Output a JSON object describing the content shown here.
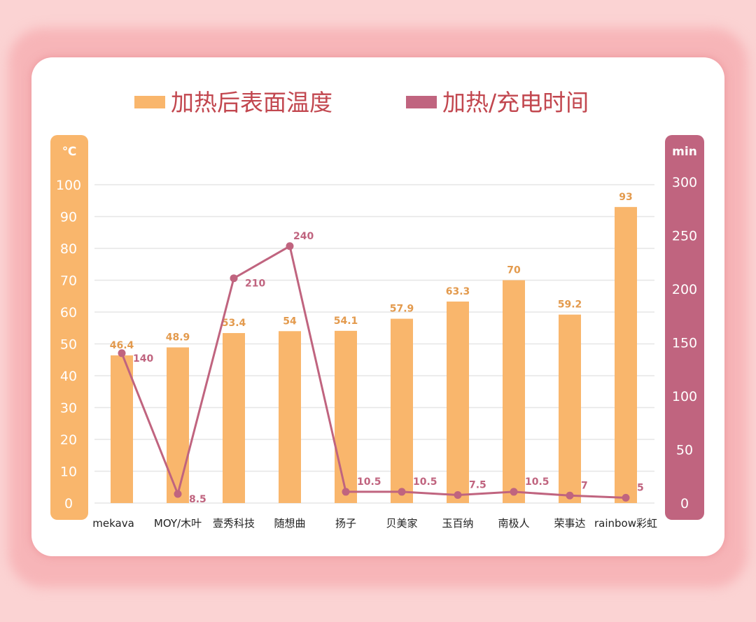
{
  "chart_data": {
    "type": "bar+line",
    "categories": [
      "mekava",
      "MOY/木叶",
      "壹秀科技",
      "随想曲",
      "扬子",
      "贝美家",
      "玉百纳",
      "南极人",
      "荣事达",
      "rainbow彩虹"
    ],
    "series": [
      {
        "name": "加热后表面温度",
        "type": "bar",
        "axis": "left",
        "color": "#f9b66c",
        "values": [
          46.4,
          48.9,
          53.4,
          54,
          54.1,
          57.9,
          63.3,
          70,
          59.2,
          93
        ]
      },
      {
        "name": "加热/充电时间",
        "type": "line",
        "axis": "right",
        "color": "#c0647f",
        "values": [
          140,
          8.5,
          210,
          240,
          10.5,
          10.5,
          7.5,
          10.5,
          7,
          5
        ]
      }
    ],
    "left_axis": {
      "unit": "℃",
      "ylim": [
        0,
        100
      ],
      "ticks": [
        0,
        10,
        20,
        30,
        40,
        50,
        60,
        70,
        80,
        90,
        100
      ],
      "color": "#f9b66c"
    },
    "right_axis": {
      "unit": "min",
      "ylim": [
        0,
        300
      ],
      "ticks": [
        0,
        50,
        100,
        150,
        200,
        250,
        300
      ],
      "color": "#c0647f"
    },
    "legend_position": "top",
    "grid": true,
    "legend_text_color": "#c2474f"
  }
}
